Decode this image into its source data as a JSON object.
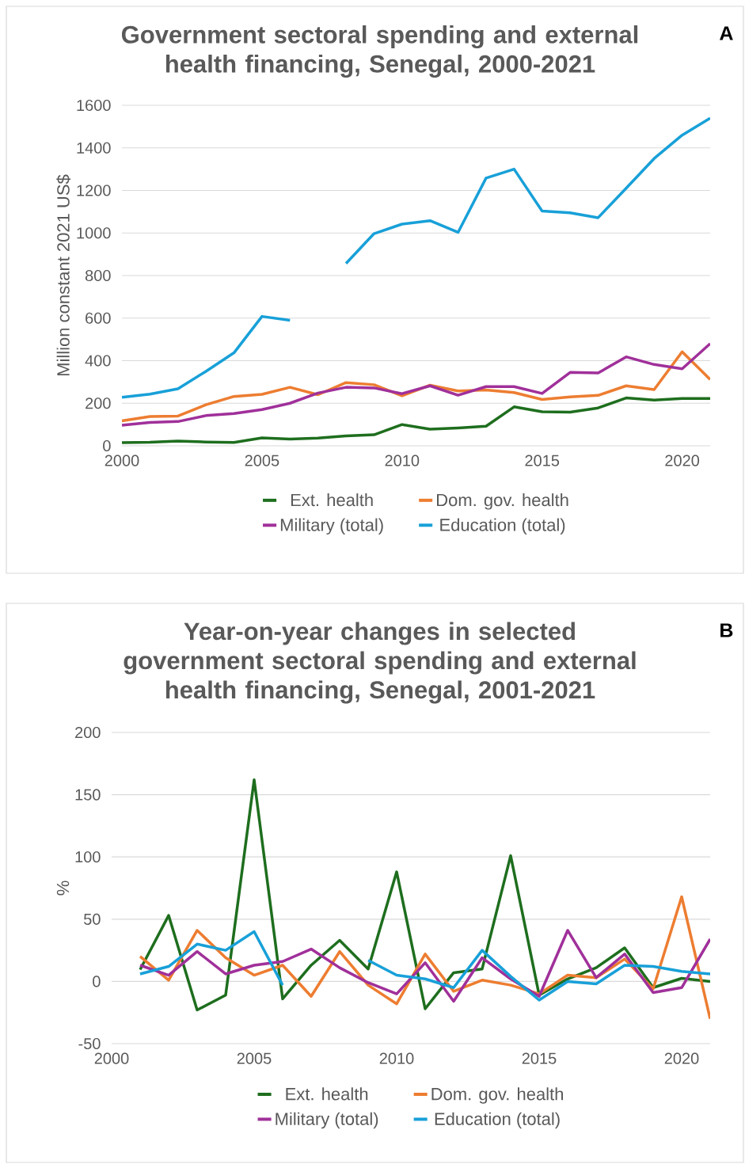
{
  "chart_data": [
    {
      "type": "line",
      "title": "Government sectoral spending and external health financing, Senegal, 2000-2021",
      "ylabel": "Million constant 2021 US$",
      "annotations": [
        "A"
      ],
      "x": [
        2000,
        2001,
        2002,
        2003,
        2004,
        2005,
        2006,
        2007,
        2008,
        2009,
        2010,
        2011,
        2012,
        2013,
        2014,
        2015,
        2016,
        2017,
        2018,
        2019,
        2020,
        2021
      ],
      "xlim": [
        2000,
        2021
      ],
      "xticks": [
        2000,
        2005,
        2010,
        2015,
        2020
      ],
      "ylim": [
        0,
        1600
      ],
      "yticks": [
        0,
        200,
        400,
        600,
        800,
        1000,
        1200,
        1400,
        1600
      ],
      "grid": "y",
      "legend": "bottom",
      "line_style": "solid",
      "series": [
        {
          "name": "Ext. health",
          "color": "#1e6e1e",
          "values": [
            15,
            17,
            22,
            18,
            16,
            37,
            32,
            36,
            47,
            52,
            100,
            78,
            84,
            92,
            183,
            160,
            158,
            178,
            225,
            215,
            222,
            222
          ]
        },
        {
          "name": "Dom. gov. health",
          "color": "#ed7d31",
          "values": [
            117,
            138,
            140,
            193,
            232,
            242,
            275,
            240,
            297,
            287,
            235,
            285,
            258,
            262,
            250,
            218,
            230,
            237,
            282,
            264,
            442,
            312
          ]
        },
        {
          "name": "Military (total)",
          "color": "#a0309a",
          "values": [
            97,
            110,
            114,
            142,
            152,
            170,
            200,
            248,
            275,
            272,
            245,
            282,
            238,
            278,
            278,
            246,
            345,
            342,
            418,
            382,
            362,
            480
          ]
        },
        {
          "name": "Education (total)",
          "color": "#18a0d8",
          "values": [
            228,
            243,
            268,
            350,
            437,
            608,
            590,
            null,
            857,
            997,
            1042,
            1058,
            1003,
            1258,
            1300,
            1103,
            1095,
            1072,
            1210,
            1350,
            1460,
            1540
          ]
        }
      ]
    },
    {
      "type": "line",
      "title": "Year-on-year changes in selected government sectoral spending and external health financing, Senegal, 2001-2021",
      "ylabel": "%",
      "annotations": [
        "B"
      ],
      "x": [
        2001,
        2002,
        2003,
        2004,
        2005,
        2006,
        2007,
        2008,
        2009,
        2010,
        2011,
        2012,
        2013,
        2014,
        2015,
        2016,
        2017,
        2018,
        2019,
        2020,
        2021
      ],
      "xlim": [
        2000,
        2021
      ],
      "xticks": [
        2000,
        2005,
        2010,
        2015,
        2020
      ],
      "ylim": [
        -50,
        200
      ],
      "yticks": [
        -50,
        0,
        50,
        100,
        150,
        200
      ],
      "grid": "y",
      "legend": "bottom",
      "line_style": "solid",
      "series": [
        {
          "name": "Ext. health",
          "color": "#1e6e1e",
          "values": [
            9.5,
            53,
            -23,
            -11,
            162,
            -14,
            13,
            33,
            10,
            88,
            -22,
            7,
            10,
            101,
            -11,
            2,
            11,
            27,
            -5,
            2.5,
            0
          ]
        },
        {
          "name": "Dom. gov. health",
          "color": "#ed7d31",
          "values": [
            20,
            1,
            41,
            19,
            5,
            13,
            -12,
            24,
            -3,
            -18,
            22,
            -8,
            1,
            -3,
            -10,
            5,
            3,
            18,
            -6,
            68,
            -30
          ]
        },
        {
          "name": "Military (total)",
          "color": "#a0309a",
          "values": [
            13,
            5,
            24,
            6,
            13,
            16,
            26,
            11,
            -1,
            -10,
            15,
            -16,
            19,
            2,
            -12,
            41,
            3,
            22,
            -9,
            -5,
            34
          ]
        },
        {
          "name": "Education (total)",
          "color": "#18a0d8",
          "values": [
            6,
            12,
            30,
            25,
            40,
            -3,
            null,
            null,
            17,
            5,
            2,
            -5,
            25,
            4,
            -15,
            0,
            -2,
            13,
            12,
            8,
            6
          ]
        }
      ]
    }
  ]
}
